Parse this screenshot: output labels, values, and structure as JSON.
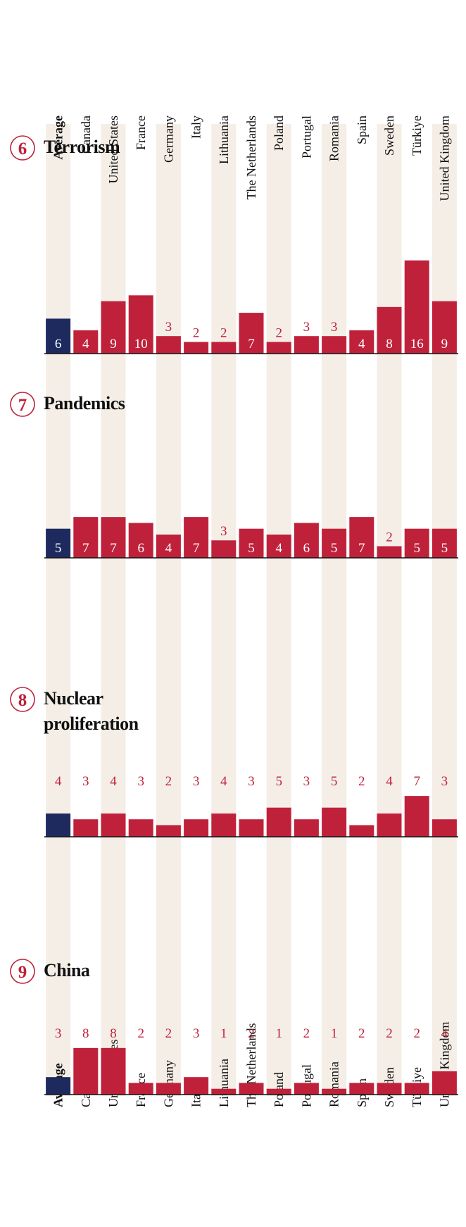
{
  "chart_data": [
    {
      "type": "bar",
      "rank": "6",
      "title": "Terrorism",
      "label_position": "inside",
      "categories": [
        "Average",
        "Canada",
        "United States",
        "France",
        "Germany",
        "Italy",
        "Lithuania",
        "The Netherlands",
        "Poland",
        "Portugal",
        "Romania",
        "Spain",
        "Sweden",
        "Türkiye",
        "United Kingdom"
      ],
      "values": [
        6,
        4,
        9,
        10,
        3,
        2,
        2,
        7,
        2,
        3,
        3,
        4,
        8,
        16,
        9
      ],
      "color": "#c0213a",
      "average_color": "#1e2a5e"
    },
    {
      "type": "bar",
      "rank": "7",
      "title": "Pandemics",
      "label_position": "inside",
      "values": [
        5,
        7,
        7,
        6,
        4,
        7,
        3,
        5,
        4,
        6,
        5,
        7,
        2,
        5,
        5
      ],
      "color": "#c0213a",
      "average_color": "#1e2a5e"
    },
    {
      "type": "bar",
      "rank": "8",
      "title": "Nuclear proliferation",
      "label_position": "row",
      "values": [
        4,
        3,
        4,
        3,
        2,
        3,
        4,
        3,
        5,
        3,
        5,
        2,
        4,
        7,
        3
      ],
      "color": "#c0213a",
      "average_color": "#1e2a5e"
    },
    {
      "type": "bar",
      "rank": "9",
      "title": "China",
      "label_position": "row",
      "categories": [
        "Average",
        "Canada",
        "United States",
        "France",
        "Germany",
        "Italy",
        "Lithuania",
        "The Netherlands",
        "Poland",
        "Portugal",
        "Romania",
        "Spain",
        "Sweden",
        "Türkiye",
        "United Kingdom"
      ],
      "values": [
        3,
        8,
        8,
        2,
        2,
        3,
        1,
        2,
        1,
        2,
        1,
        2,
        2,
        2,
        4
      ],
      "color": "#c0213a",
      "average_color": "#1e2a5e"
    }
  ]
}
